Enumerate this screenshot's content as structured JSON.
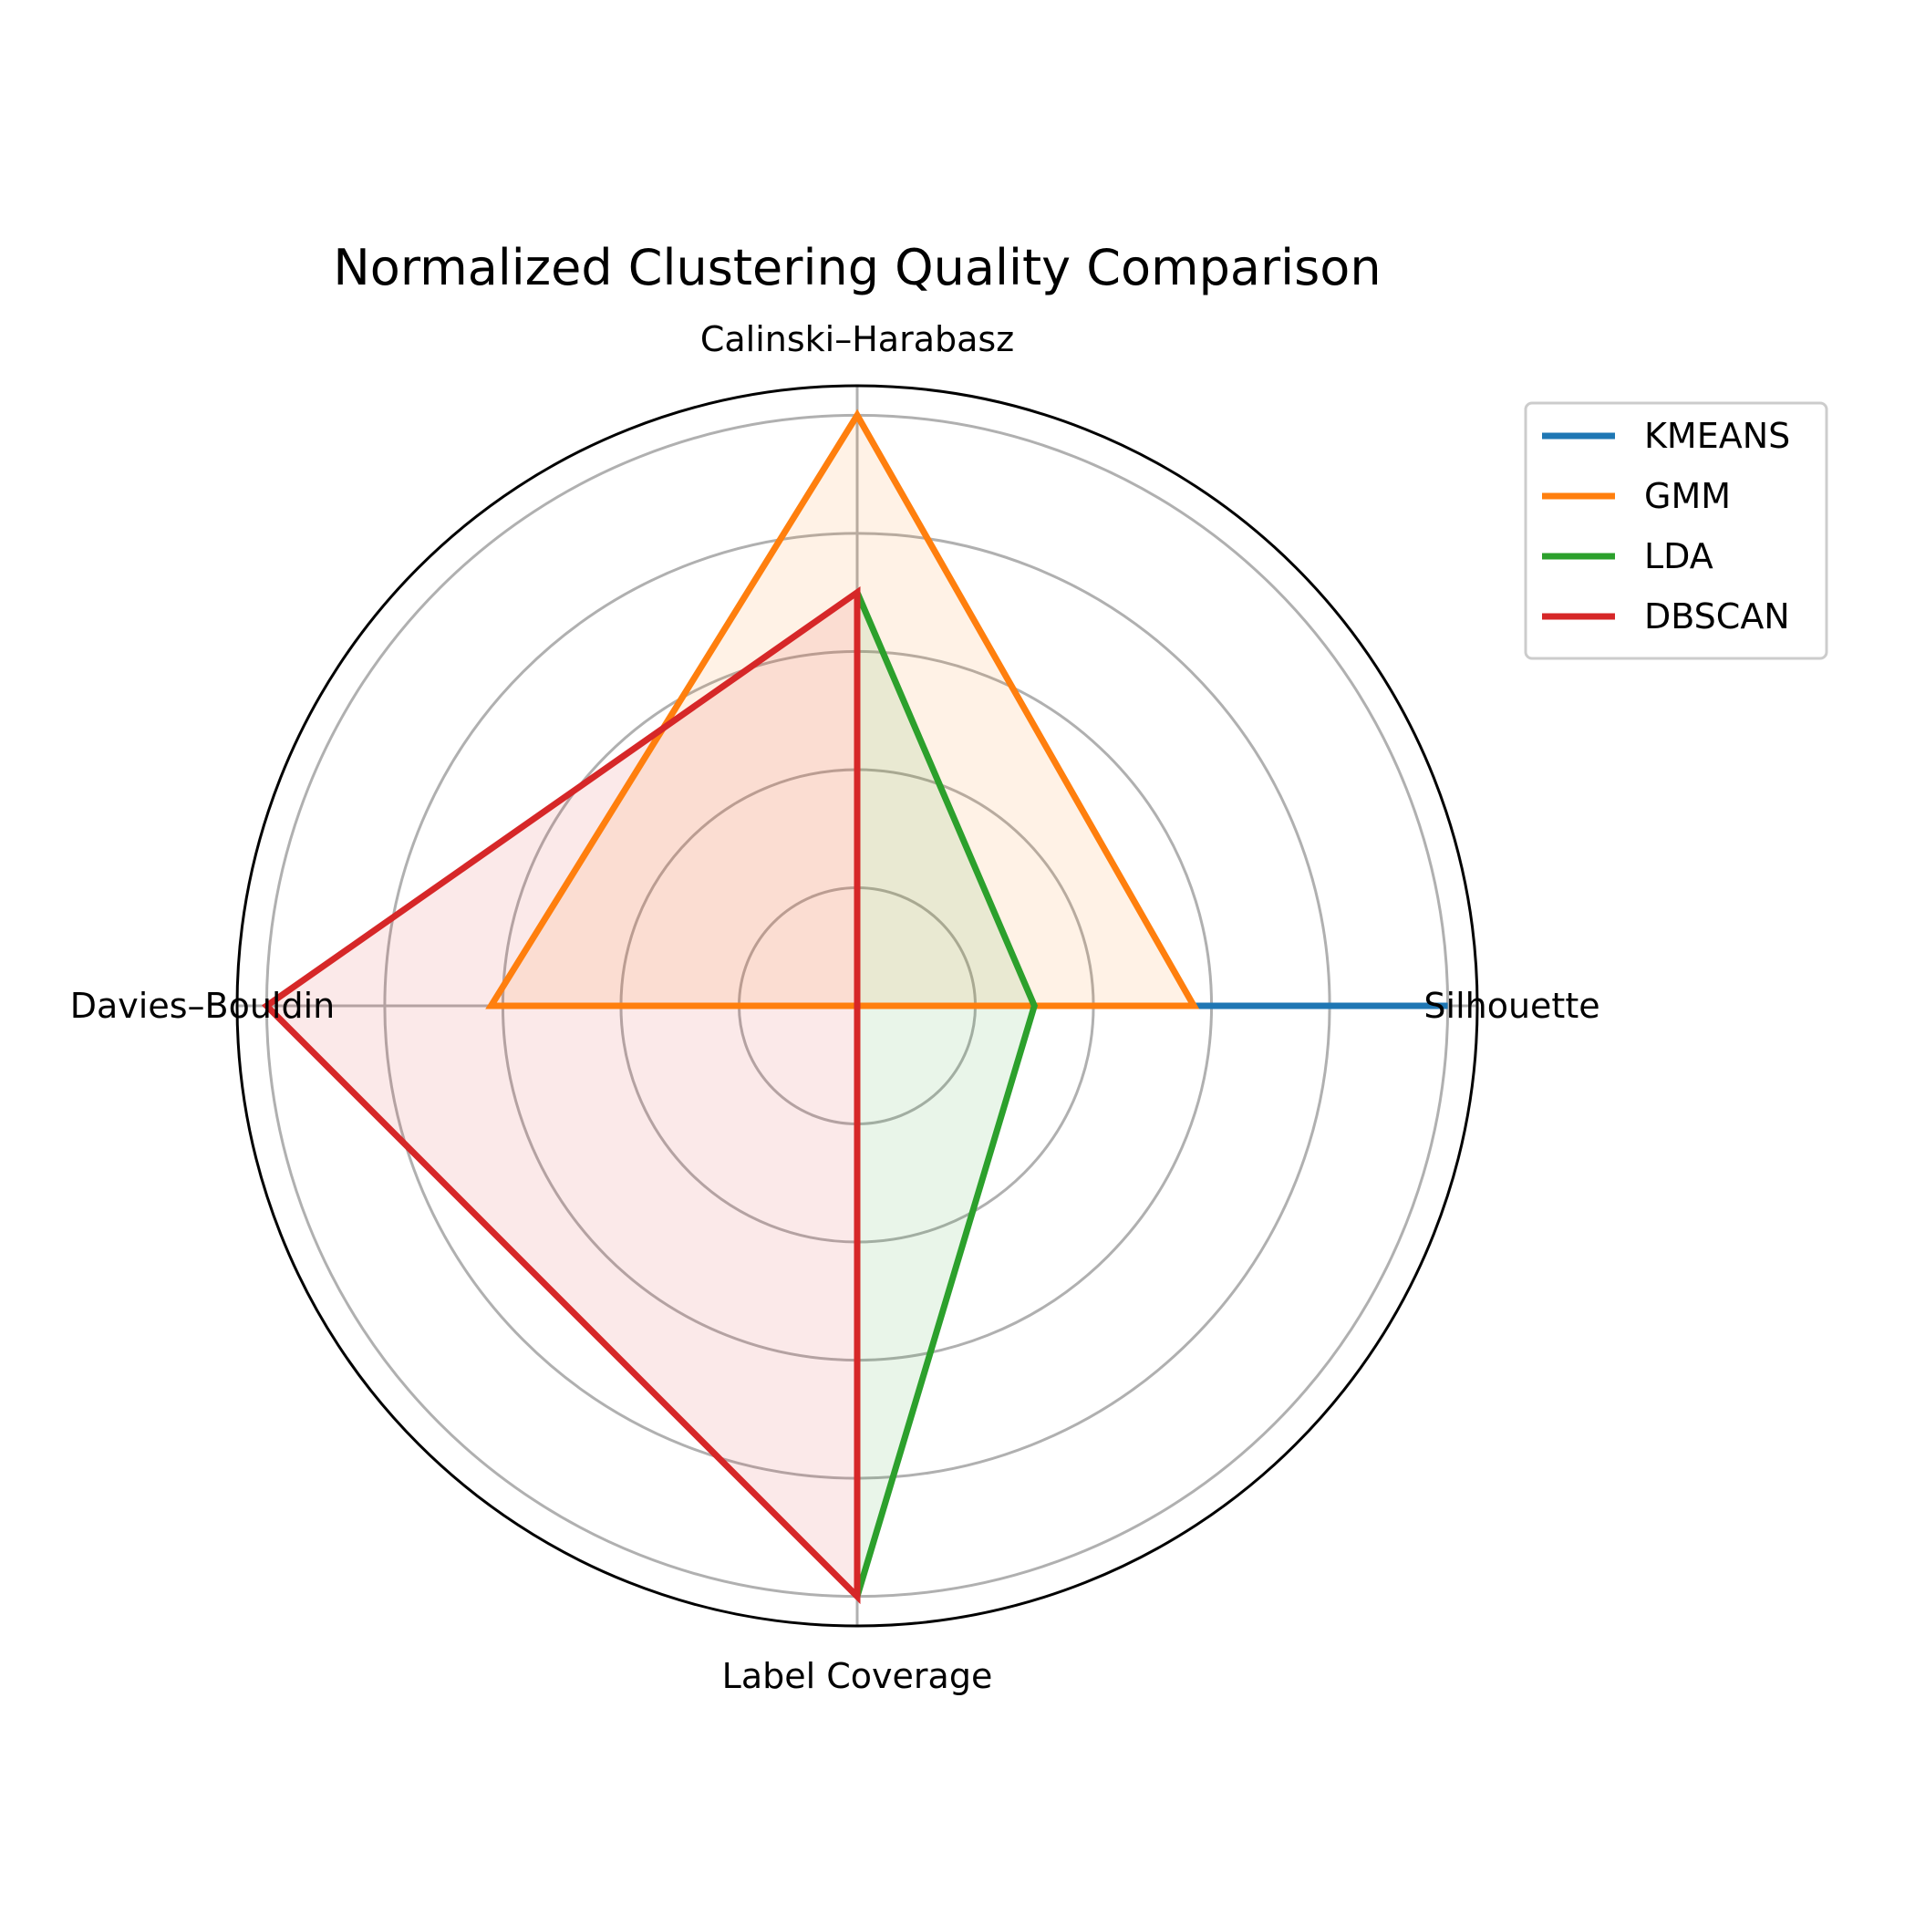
{
  "chart_data": {
    "type": "radar",
    "title": "Normalized Clustering Quality Comparison",
    "axes": [
      "Silhouette",
      "Calinski–Harabasz",
      "Davies–Bouldin",
      "Label Coverage"
    ],
    "rlim": [
      0,
      1.05
    ],
    "rgrid": [
      0.2,
      0.4,
      0.6,
      0.8,
      1.0
    ],
    "grid": true,
    "legend_position": "top-right",
    "series": [
      {
        "name": "KMEANS",
        "color": "#1f77b4",
        "values": [
          1.0,
          0.0,
          0.51,
          0.0
        ]
      },
      {
        "name": "GMM",
        "color": "#ff7f0e",
        "values": [
          0.57,
          1.0,
          0.62,
          0.0
        ]
      },
      {
        "name": "LDA",
        "color": "#2ca02c",
        "values": [
          0.3,
          0.7,
          0.0,
          1.0
        ]
      },
      {
        "name": "DBSCAN",
        "color": "#d62728",
        "values": [
          0.0,
          0.7,
          1.0,
          1.0
        ]
      }
    ]
  }
}
